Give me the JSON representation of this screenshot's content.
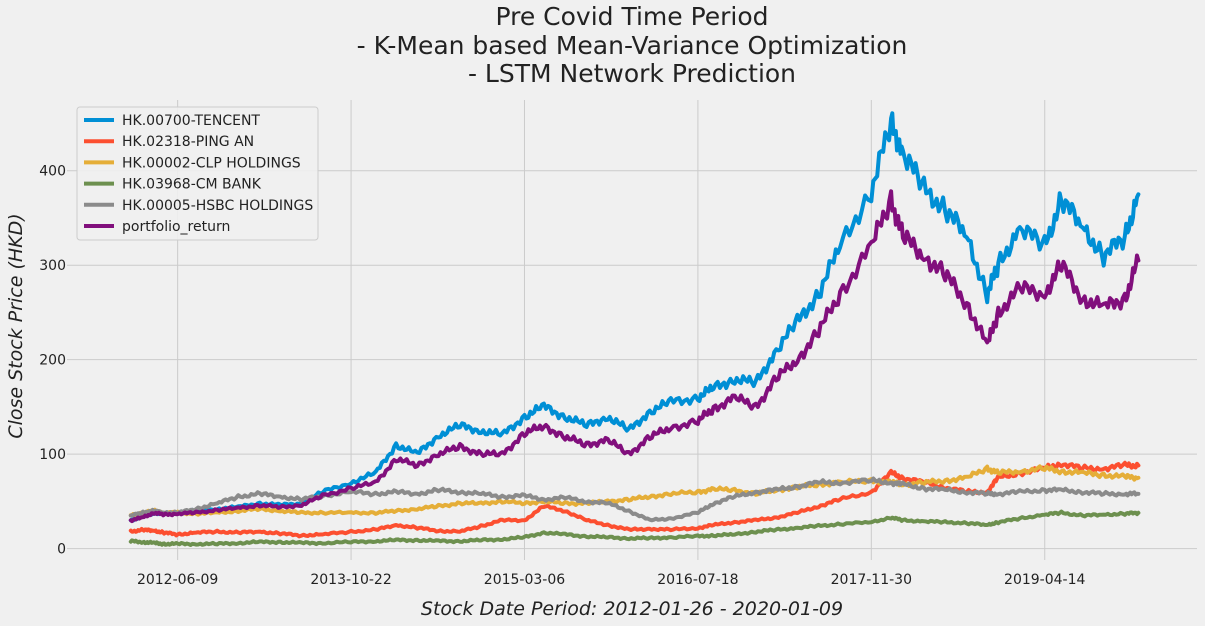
{
  "chart_data": {
    "type": "line",
    "title_lines": [
      "Pre Covid Time Period",
      "- K-Mean based Mean-Variance Optimization",
      "- LSTM Network Prediction"
    ],
    "xlabel": "Stock Date Period: 2012-01-26 - 2020-01-09",
    "ylabel": "Close Stock Price (HKD)",
    "x_ticks": [
      "2012-06-09",
      "2013-10-22",
      "2015-03-06",
      "2016-07-18",
      "2017-11-30",
      "2019-04-14"
    ],
    "x_range": [
      "2011-07-26",
      "2020-06-26"
    ],
    "y_ticks": [
      0,
      100,
      200,
      300,
      400
    ],
    "ylim": [
      -12,
      478
    ],
    "grid": true,
    "legend_position": "top-left",
    "dates": [
      "2012-01-26",
      "2012-03-01",
      "2012-04-01",
      "2012-05-01",
      "2012-06-09",
      "2012-08-01",
      "2012-10-01",
      "2012-12-01",
      "2013-02-01",
      "2013-04-01",
      "2013-06-01",
      "2013-08-01",
      "2013-10-22",
      "2014-01-01",
      "2014-03-01",
      "2014-05-01",
      "2014-07-01",
      "2014-09-01",
      "2014-11-01",
      "2015-01-01",
      "2015-03-06",
      "2015-05-01",
      "2015-07-01",
      "2015-09-01",
      "2015-11-01",
      "2016-01-01",
      "2016-03-01",
      "2016-05-01",
      "2016-07-18",
      "2016-09-01",
      "2016-11-01",
      "2017-01-01",
      "2017-03-01",
      "2017-05-01",
      "2017-07-01",
      "2017-09-01",
      "2017-11-30",
      "2018-01-26",
      "2018-03-01",
      "2018-05-01",
      "2018-07-01",
      "2018-09-01",
      "2018-10-30",
      "2018-12-01",
      "2019-02-01",
      "2019-04-14",
      "2019-06-01",
      "2019-08-01",
      "2019-10-01",
      "2019-12-01",
      "2020-01-09"
    ],
    "series": [
      {
        "name": "HK.00700-TENCENT",
        "color": "#008fd5",
        "values": [
          30,
          34,
          38,
          37,
          39,
          40,
          42,
          44,
          48,
          46,
          48,
          60,
          70,
          80,
          110,
          100,
          120,
          130,
          125,
          120,
          140,
          150,
          140,
          130,
          140,
          125,
          145,
          155,
          160,
          170,
          180,
          175,
          210,
          240,
          270,
          320,
          380,
          450,
          420,
          380,
          360,
          330,
          270,
          300,
          340,
          320,
          370,
          340,
          310,
          330,
          375
        ]
      },
      {
        "name": "HK.02318-PING AN",
        "color": "#fc4f30",
        "values": [
          18,
          20,
          19,
          17,
          15,
          17,
          18,
          17,
          18,
          16,
          14,
          15,
          18,
          20,
          25,
          22,
          19,
          18,
          24,
          30,
          30,
          45,
          40,
          30,
          25,
          20,
          21,
          20,
          22,
          25,
          28,
          30,
          33,
          38,
          45,
          52,
          60,
          80,
          75,
          70,
          65,
          60,
          60,
          75,
          80,
          85,
          90,
          85,
          85,
          88,
          88
        ]
      },
      {
        "name": "HK.00002-CLP HOLDINGS",
        "color": "#e5ae38",
        "values": [
          35,
          38,
          40,
          38,
          38,
          37,
          38,
          40,
          42,
          40,
          38,
          38,
          38,
          38,
          40,
          42,
          45,
          48,
          48,
          50,
          48,
          50,
          48,
          48,
          50,
          52,
          55,
          58,
          60,
          63,
          62,
          58,
          62,
          65,
          68,
          70,
          72,
          70,
          68,
          70,
          72,
          75,
          85,
          80,
          82,
          85,
          82,
          80,
          78,
          76,
          75
        ]
      },
      {
        "name": "HK.03968-CM BANK",
        "color": "#6d904f",
        "values": [
          8,
          7,
          6,
          5,
          5,
          5,
          5,
          6,
          7,
          7,
          6,
          6,
          7,
          8,
          9,
          9,
          8,
          8,
          9,
          10,
          12,
          17,
          15,
          13,
          12,
          11,
          11,
          12,
          13,
          14,
          15,
          18,
          20,
          22,
          24,
          26,
          28,
          33,
          30,
          29,
          28,
          27,
          25,
          28,
          32,
          36,
          38,
          35,
          36,
          37,
          38
        ]
      },
      {
        "name": "HK.00005-HSBC HOLDINGS",
        "color": "#8b8b8b",
        "values": [
          35,
          38,
          40,
          38,
          38,
          42,
          48,
          55,
          58,
          55,
          52,
          56,
          60,
          58,
          60,
          58,
          62,
          60,
          58,
          55,
          56,
          52,
          54,
          50,
          48,
          40,
          30,
          32,
          38,
          48,
          55,
          60,
          62,
          66,
          70,
          70,
          72,
          70,
          68,
          64,
          62,
          60,
          58,
          58,
          60,
          62,
          62,
          60,
          58,
          58,
          58
        ]
      },
      {
        "name": "portfolio_return",
        "color": "#810f7c",
        "values": [
          30,
          33,
          38,
          36,
          37,
          38,
          41,
          43,
          46,
          44,
          46,
          56,
          64,
          70,
          95,
          88,
          100,
          108,
          100,
          100,
          122,
          130,
          118,
          110,
          115,
          100,
          118,
          128,
          135,
          148,
          160,
          150,
          180,
          200,
          230,
          270,
          320,
          370,
          330,
          310,
          290,
          260,
          215,
          250,
          275,
          270,
          300,
          265,
          255,
          265,
          305
        ]
      }
    ]
  }
}
